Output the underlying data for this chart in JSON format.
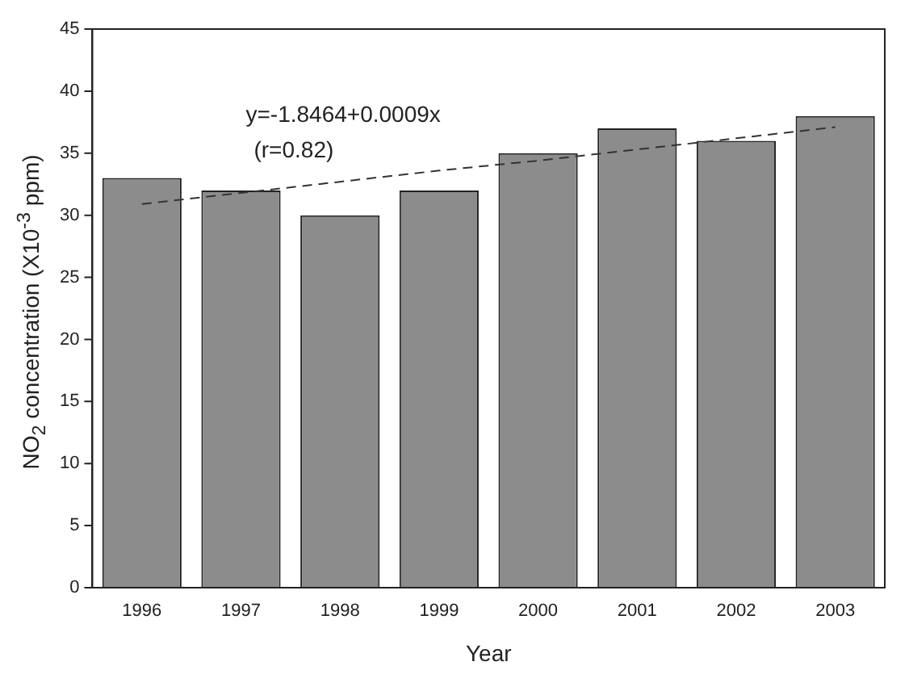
{
  "chart_data": {
    "type": "bar",
    "xlabel": "Year",
    "ylabel": "NO$_{2}$ concentration (X10$^{-3}$ ppm)",
    "categories": [
      "1996",
      "1997",
      "1998",
      "1999",
      "2000",
      "2001",
      "2002",
      "2003"
    ],
    "series": [
      {
        "color": "#8c8c8c",
        "values": [
          33,
          32,
          30,
          32,
          35,
          37,
          36,
          38
        ]
      },
      {
        "type": "line",
        "color": "#333333",
        "line_style": "dashed",
        "values": [
          30.9,
          31.8,
          32.7,
          33.6,
          34.4,
          35.3,
          36.2,
          37.1
        ]
      }
    ],
    "annotations": [
      "y=-1.8464+0.0009x",
      "(r=0.82)"
    ],
    "ylim": [
      0,
      45
    ],
    "yticks": [
      0,
      5,
      10,
      15,
      20,
      25,
      30,
      35,
      40,
      45
    ],
    "grid": false,
    "legend": false
  }
}
